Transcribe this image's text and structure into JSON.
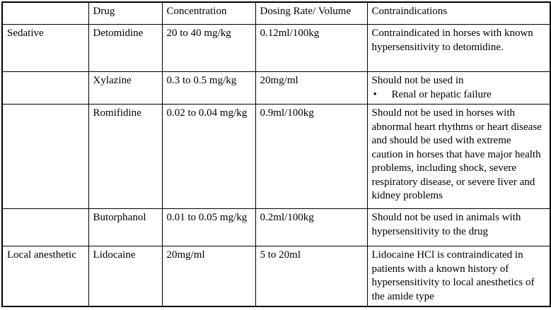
{
  "icons": {
    "bullet": "•"
  },
  "table": {
    "columns": [
      {
        "label": ""
      },
      {
        "label": "Drug"
      },
      {
        "label": "Concentration"
      },
      {
        "label": "Dosing Rate/ Volume"
      },
      {
        "label": "Contraindications"
      }
    ],
    "rows": [
      {
        "category": "Sedative",
        "drug": "Detomidine",
        "concentration": "20 to 40 mg/kg",
        "dosing": "0.12ml/100kg",
        "contraindications": "Contraindicated in horses with known hypersensitivity to detomidine."
      },
      {
        "category": "",
        "drug": "Xylazine",
        "concentration": "0.3 to 0.5 mg/kg",
        "dosing": "20mg/ml",
        "contraindications_intro": "Should not be used in",
        "contraindications_bullet": "Renal or hepatic failure"
      },
      {
        "category": "",
        "drug": "Romifidine",
        "concentration": "0.02 to 0.04 mg/kg",
        "dosing": "0.9ml/100kg",
        "contraindications": "Should not be used in horses with abnormal heart rhythms or heart disease and should be used with extreme caution in horses that have major health problems, including shock, severe respiratory disease, or severe liver and kidney problems"
      },
      {
        "category": "",
        "drug": "Butorphanol",
        "concentration": "0.01 to 0.05 mg/kg",
        "dosing": "0.2ml/100kg",
        "contraindications": "Should not be used in animals with hypersensitivity to the drug"
      },
      {
        "category": "Local anesthetic",
        "drug": "Lidocaine",
        "concentration": "20mg/ml",
        "dosing": "5 to 20ml",
        "contraindications": "Lidocaine HCl is contraindicated in patients with a known history of hypersensitivity to local anesthetics of the amide type"
      }
    ]
  }
}
